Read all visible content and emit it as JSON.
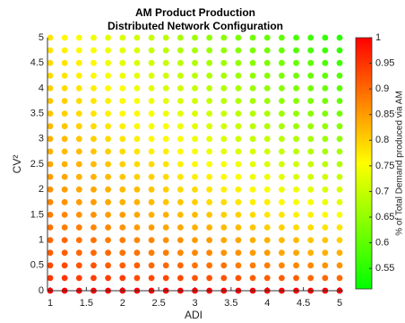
{
  "chart_data": {
    "type": "scatter",
    "title": "AM Product Production",
    "subtitle": "Distributed Network Configuration",
    "xlabel": "ADI",
    "ylabel": "CV²",
    "colorbar_label": "% of Total Demand produced via AM",
    "x": [
      1,
      1.2,
      1.4,
      1.6,
      1.8,
      2,
      2.2,
      2.4,
      2.6,
      2.8,
      3,
      3.2,
      3.4,
      3.6,
      3.8,
      4,
      4.2,
      4.4,
      4.6,
      4.8,
      5
    ],
    "y": [
      0,
      0.25,
      0.5,
      0.75,
      1,
      1.25,
      1.5,
      1.75,
      2,
      2.25,
      2.5,
      2.75,
      3,
      3.25,
      3.5,
      3.75,
      4,
      4.25,
      4.5,
      4.75,
      5
    ],
    "values": [
      [
        1,
        1,
        1,
        1,
        1,
        1,
        1,
        1,
        1,
        1,
        1,
        1,
        1,
        1,
        1,
        1,
        1,
        1,
        1,
        1,
        1
      ],
      [
        0.95,
        0.95,
        0.94,
        0.94,
        0.94,
        0.94,
        0.93,
        0.93,
        0.93,
        0.93,
        0.92,
        0.92,
        0.92,
        0.92,
        0.91,
        0.91,
        0.91,
        0.91,
        0.9,
        0.9,
        0.9
      ],
      [
        0.93,
        0.93,
        0.92,
        0.92,
        0.91,
        0.91,
        0.91,
        0.9,
        0.9,
        0.9,
        0.89,
        0.89,
        0.89,
        0.88,
        0.88,
        0.88,
        0.87,
        0.87,
        0.87,
        0.86,
        0.86
      ],
      [
        0.91,
        0.91,
        0.9,
        0.9,
        0.9,
        0.89,
        0.89,
        0.88,
        0.88,
        0.87,
        0.87,
        0.87,
        0.86,
        0.86,
        0.85,
        0.85,
        0.84,
        0.84,
        0.83,
        0.83,
        0.83
      ],
      [
        0.9,
        0.9,
        0.89,
        0.89,
        0.88,
        0.88,
        0.87,
        0.87,
        0.86,
        0.86,
        0.85,
        0.85,
        0.84,
        0.84,
        0.83,
        0.83,
        0.82,
        0.82,
        0.81,
        0.81,
        0.8
      ],
      [
        0.89,
        0.88,
        0.88,
        0.87,
        0.87,
        0.86,
        0.85,
        0.85,
        0.84,
        0.84,
        0.83,
        0.83,
        0.82,
        0.82,
        0.81,
        0.8,
        0.8,
        0.79,
        0.79,
        0.78,
        0.78
      ],
      [
        0.88,
        0.87,
        0.86,
        0.86,
        0.85,
        0.85,
        0.84,
        0.83,
        0.83,
        0.82,
        0.82,
        0.81,
        0.8,
        0.8,
        0.79,
        0.78,
        0.78,
        0.77,
        0.77,
        0.76,
        0.75
      ],
      [
        0.87,
        0.86,
        0.85,
        0.85,
        0.84,
        0.83,
        0.83,
        0.82,
        0.81,
        0.81,
        0.8,
        0.79,
        0.79,
        0.78,
        0.77,
        0.77,
        0.76,
        0.75,
        0.75,
        0.74,
        0.73
      ],
      [
        0.86,
        0.85,
        0.84,
        0.84,
        0.83,
        0.82,
        0.82,
        0.81,
        0.8,
        0.79,
        0.79,
        0.78,
        0.77,
        0.77,
        0.76,
        0.75,
        0.74,
        0.74,
        0.73,
        0.72,
        0.72
      ],
      [
        0.85,
        0.84,
        0.83,
        0.83,
        0.82,
        0.81,
        0.8,
        0.8,
        0.79,
        0.78,
        0.77,
        0.77,
        0.76,
        0.75,
        0.74,
        0.74,
        0.73,
        0.72,
        0.71,
        0.71,
        0.7
      ],
      [
        0.84,
        0.83,
        0.83,
        0.82,
        0.81,
        0.8,
        0.79,
        0.79,
        0.78,
        0.77,
        0.76,
        0.75,
        0.75,
        0.74,
        0.73,
        0.72,
        0.71,
        0.71,
        0.7,
        0.69,
        0.68
      ],
      [
        0.83,
        0.82,
        0.82,
        0.81,
        0.8,
        0.79,
        0.78,
        0.77,
        0.77,
        0.76,
        0.75,
        0.74,
        0.73,
        0.72,
        0.72,
        0.71,
        0.7,
        0.69,
        0.68,
        0.67,
        0.67
      ],
      [
        0.83,
        0.82,
        0.81,
        0.8,
        0.79,
        0.78,
        0.77,
        0.76,
        0.76,
        0.75,
        0.74,
        0.73,
        0.72,
        0.71,
        0.7,
        0.7,
        0.69,
        0.68,
        0.67,
        0.66,
        0.65
      ],
      [
        0.82,
        0.81,
        0.8,
        0.79,
        0.78,
        0.77,
        0.76,
        0.75,
        0.75,
        0.74,
        0.73,
        0.72,
        0.71,
        0.7,
        0.69,
        0.68,
        0.67,
        0.66,
        0.66,
        0.65,
        0.64
      ],
      [
        0.81,
        0.8,
        0.79,
        0.78,
        0.77,
        0.76,
        0.76,
        0.75,
        0.74,
        0.73,
        0.72,
        0.71,
        0.7,
        0.69,
        0.68,
        0.67,
        0.66,
        0.65,
        0.64,
        0.63,
        0.62
      ],
      [
        0.81,
        0.8,
        0.79,
        0.78,
        0.77,
        0.76,
        0.75,
        0.74,
        0.73,
        0.72,
        0.71,
        0.7,
        0.69,
        0.68,
        0.67,
        0.66,
        0.65,
        0.64,
        0.63,
        0.62,
        0.61
      ],
      [
        0.8,
        0.79,
        0.78,
        0.77,
        0.76,
        0.75,
        0.74,
        0.73,
        0.72,
        0.71,
        0.7,
        0.69,
        0.68,
        0.67,
        0.66,
        0.65,
        0.64,
        0.63,
        0.62,
        0.61,
        0.6
      ],
      [
        0.79,
        0.78,
        0.77,
        0.76,
        0.75,
        0.74,
        0.73,
        0.72,
        0.71,
        0.7,
        0.69,
        0.68,
        0.67,
        0.66,
        0.65,
        0.64,
        0.63,
        0.62,
        0.61,
        0.6,
        0.59
      ],
      [
        0.79,
        0.78,
        0.77,
        0.76,
        0.74,
        0.73,
        0.72,
        0.71,
        0.7,
        0.69,
        0.68,
        0.67,
        0.66,
        0.65,
        0.64,
        0.63,
        0.62,
        0.61,
        0.6,
        0.58,
        0.57
      ],
      [
        0.78,
        0.77,
        0.76,
        0.75,
        0.74,
        0.73,
        0.72,
        0.7,
        0.69,
        0.68,
        0.67,
        0.66,
        0.65,
        0.64,
        0.63,
        0.62,
        0.61,
        0.59,
        0.58,
        0.57,
        0.56
      ],
      [
        0.78,
        0.76,
        0.75,
        0.74,
        0.73,
        0.72,
        0.71,
        0.7,
        0.69,
        0.67,
        0.66,
        0.65,
        0.64,
        0.63,
        0.62,
        0.61,
        0.6,
        0.58,
        0.57,
        0.56,
        0.55
      ]
    ],
    "colormap": [
      "#00ff00",
      "#ffff00",
      "#ff0000"
    ],
    "clim": [
      0.51,
      1
    ],
    "cticks": [
      0.55,
      0.6,
      0.65,
      0.7,
      0.75,
      0.8,
      0.85,
      0.9,
      0.95,
      1
    ],
    "xlim": [
      1,
      5
    ],
    "ylim": [
      0,
      5
    ],
    "xticks": [
      1,
      1.5,
      2,
      2.5,
      3,
      3.5,
      4,
      4.5,
      5
    ],
    "yticks": [
      0,
      0.5,
      1,
      1.5,
      2,
      2.5,
      3,
      3.5,
      4,
      4.5,
      5
    ]
  }
}
